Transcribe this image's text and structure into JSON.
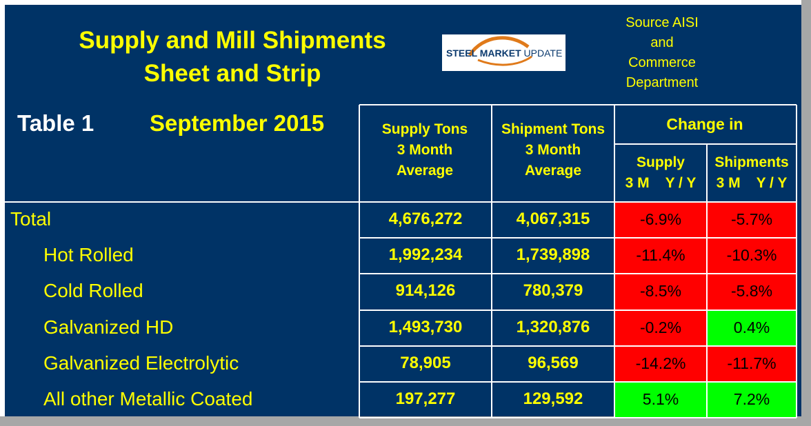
{
  "chart_data": {
    "type": "table",
    "title_line1": "Supply and Mill Shipments",
    "title_line2": "Sheet and Strip",
    "table_label": "Table 1",
    "period": "September 2015",
    "source_lines": [
      "Source AISI",
      "and",
      "Commerce",
      "Department"
    ],
    "logo": {
      "text_bold": "STEEL MARKET",
      "text_light": " UPDATE"
    },
    "columns": {
      "supply": [
        "Supply Tons",
        "3 Month",
        "Average"
      ],
      "shipment": [
        "Shipment Tons",
        "3 Month",
        "Average"
      ],
      "change_group": "Change in",
      "change_supply": [
        "Supply",
        "3 M    Y / Y"
      ],
      "change_shipments": [
        "Shipments",
        "3 M    Y / Y"
      ]
    },
    "rows": [
      {
        "label": "Total",
        "supply": "4,676,272",
        "shipment": "4,067,315",
        "chg_supply": "-6.9%",
        "chg_ship": "-5.7%",
        "supply_color": "#ff0000",
        "ship_color": "#ff0000"
      },
      {
        "label": "Hot Rolled",
        "supply": "1,992,234",
        "shipment": "1,739,898",
        "chg_supply": "-11.4%",
        "chg_ship": "-10.3%",
        "supply_color": "#ff0000",
        "ship_color": "#ff0000"
      },
      {
        "label": "Cold Rolled",
        "supply": "914,126",
        "shipment": "780,379",
        "chg_supply": "-8.5%",
        "chg_ship": "-5.8%",
        "supply_color": "#ff0000",
        "ship_color": "#ff0000"
      },
      {
        "label": "Galvanized HD",
        "supply": "1,493,730",
        "shipment": "1,320,876",
        "chg_supply": "-0.2%",
        "chg_ship": "0.4%",
        "supply_color": "#ff0000",
        "ship_color": "#00ff00"
      },
      {
        "label": "Galvanized Electrolytic",
        "supply": "78,905",
        "shipment": "96,569",
        "chg_supply": "-14.2%",
        "chg_ship": "-11.7%",
        "supply_color": "#ff0000",
        "ship_color": "#ff0000"
      },
      {
        "label": "All other Metallic Coated",
        "supply": "197,277",
        "shipment": "129,592",
        "chg_supply": "5.1%",
        "chg_ship": "7.2%",
        "supply_color": "#00ff00",
        "ship_color": "#00ff00"
      }
    ]
  }
}
